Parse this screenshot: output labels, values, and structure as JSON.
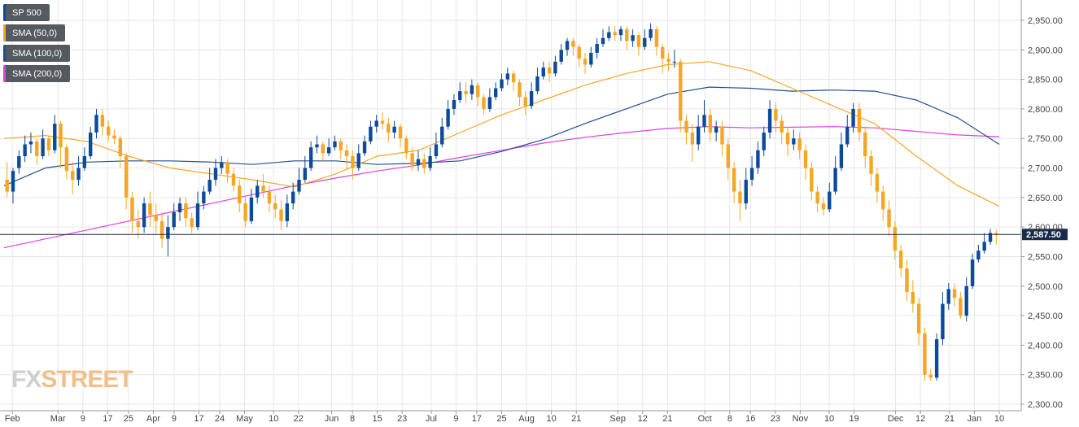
{
  "legend": [
    {
      "label": "SP 500",
      "color": "#0d4a9a"
    },
    {
      "label": "SMA (50,0)",
      "color": "#f5a623"
    },
    {
      "label": "SMA (100,0)",
      "color": "#1f4f8f"
    },
    {
      "label": "SMA (200,0)",
      "color": "#e040e0"
    }
  ],
  "watermark": {
    "part1": "FX",
    "part2": "STREET"
  },
  "colors": {
    "up": "#0d4a9a",
    "down": "#f5a623",
    "sma50": "#f5a623",
    "sma100": "#1f4f8f",
    "sma200": "#e040e0",
    "grid": "#e6e6e6",
    "price_line": "#1b2a4a"
  },
  "chart_data": {
    "type": "candlestick",
    "title": "",
    "ylim": [
      2300,
      2975
    ],
    "y_ticks": [
      2300,
      2350,
      2400,
      2450,
      2500,
      2550,
      2600,
      2650,
      2700,
      2750,
      2800,
      2850,
      2900,
      2950
    ],
    "y_tick_labels": [
      "2,300.00",
      "2,350.00",
      "2,400.00",
      "2,450.00",
      "2,500.00",
      "2,550.00",
      "2,600.00",
      "2,650.00",
      "2,700.00",
      "2,750.00",
      "2,800.00",
      "2,850.00",
      "2,900.00",
      "2,950.00"
    ],
    "x_range": [
      0,
      240
    ],
    "x_ticks": [
      {
        "label": "Feb",
        "x": 2
      },
      {
        "label": "Mar",
        "x": 13
      },
      {
        "label": "9",
        "x": 19
      },
      {
        "label": "17",
        "x": 25
      },
      {
        "label": "25",
        "x": 30
      },
      {
        "label": "Apr",
        "x": 36
      },
      {
        "label": "9",
        "x": 41
      },
      {
        "label": "17",
        "x": 47
      },
      {
        "label": "24",
        "x": 52
      },
      {
        "label": "May",
        "x": 58
      },
      {
        "label": "10",
        "x": 65
      },
      {
        "label": "22",
        "x": 71
      },
      {
        "label": "Jun",
        "x": 79
      },
      {
        "label": "8",
        "x": 84
      },
      {
        "label": "15",
        "x": 90
      },
      {
        "label": "23",
        "x": 96
      },
      {
        "label": "Jul",
        "x": 103
      },
      {
        "label": "9",
        "x": 109
      },
      {
        "label": "17",
        "x": 114
      },
      {
        "label": "25",
        "x": 120
      },
      {
        "label": "Aug",
        "x": 126
      },
      {
        "label": "10",
        "x": 132
      },
      {
        "label": "21",
        "x": 138
      },
      {
        "label": "Sep",
        "x": 148
      },
      {
        "label": "12",
        "x": 154
      },
      {
        "label": "21",
        "x": 160
      },
      {
        "label": "Oct",
        "x": 169
      },
      {
        "label": "8",
        "x": 175
      },
      {
        "label": "16",
        "x": 180
      },
      {
        "label": "23",
        "x": 186
      },
      {
        "label": "Nov",
        "x": 192
      },
      {
        "label": "10",
        "x": 199
      },
      {
        "label": "19",
        "x": 205
      },
      {
        "label": "Dec",
        "x": 215
      },
      {
        "label": "12",
        "x": 221
      },
      {
        "label": "21",
        "x": 228
      },
      {
        "label": "Jan",
        "x": 234
      },
      {
        "label": "10",
        "x": 240
      }
    ],
    "current_price": 2587.5,
    "current_price_label": "2,587.50",
    "candles": [
      [
        2680,
        2660,
        2710,
        2650
      ],
      [
        2660,
        2695,
        2700,
        2640
      ],
      [
        2700,
        2720,
        2730,
        2690
      ],
      [
        2720,
        2740,
        2755,
        2710
      ],
      [
        2740,
        2745,
        2760,
        2725
      ],
      [
        2745,
        2720,
        2750,
        2705
      ],
      [
        2720,
        2750,
        2765,
        2715
      ],
      [
        2750,
        2730,
        2755,
        2720
      ],
      [
        2730,
        2775,
        2790,
        2725
      ],
      [
        2775,
        2735,
        2780,
        2700
      ],
      [
        2735,
        2695,
        2740,
        2680
      ],
      [
        2695,
        2680,
        2710,
        2655
      ],
      [
        2680,
        2700,
        2720,
        2670
      ],
      [
        2700,
        2720,
        2735,
        2695
      ],
      [
        2720,
        2760,
        2770,
        2715
      ],
      [
        2760,
        2790,
        2800,
        2750
      ],
      [
        2790,
        2770,
        2800,
        2755
      ],
      [
        2770,
        2755,
        2780,
        2745
      ],
      [
        2755,
        2750,
        2765,
        2740
      ],
      [
        2750,
        2720,
        2755,
        2700
      ],
      [
        2720,
        2650,
        2725,
        2630
      ],
      [
        2650,
        2610,
        2660,
        2590
      ],
      [
        2610,
        2600,
        2630,
        2580
      ],
      [
        2600,
        2640,
        2650,
        2590
      ],
      [
        2640,
        2620,
        2660,
        2600
      ],
      [
        2620,
        2610,
        2640,
        2590
      ],
      [
        2610,
        2580,
        2625,
        2565
      ],
      [
        2580,
        2600,
        2620,
        2550
      ],
      [
        2600,
        2625,
        2640,
        2595
      ],
      [
        2625,
        2640,
        2650,
        2610
      ],
      [
        2640,
        2615,
        2650,
        2600
      ],
      [
        2615,
        2600,
        2625,
        2590
      ],
      [
        2600,
        2640,
        2660,
        2595
      ],
      [
        2640,
        2660,
        2670,
        2630
      ],
      [
        2660,
        2680,
        2700,
        2655
      ],
      [
        2680,
        2700,
        2715,
        2670
      ],
      [
        2700,
        2710,
        2720,
        2690
      ],
      [
        2710,
        2690,
        2715,
        2675
      ],
      [
        2690,
        2670,
        2700,
        2660
      ],
      [
        2670,
        2640,
        2680,
        2625
      ],
      [
        2640,
        2610,
        2650,
        2600
      ],
      [
        2610,
        2650,
        2665,
        2605
      ],
      [
        2650,
        2670,
        2680,
        2640
      ],
      [
        2670,
        2660,
        2690,
        2650
      ],
      [
        2660,
        2640,
        2670,
        2625
      ],
      [
        2640,
        2630,
        2655,
        2615
      ],
      [
        2630,
        2610,
        2645,
        2595
      ],
      [
        2610,
        2640,
        2655,
        2600
      ],
      [
        2640,
        2660,
        2675,
        2630
      ],
      [
        2660,
        2680,
        2700,
        2655
      ],
      [
        2680,
        2700,
        2720,
        2675
      ],
      [
        2700,
        2735,
        2745,
        2695
      ],
      [
        2735,
        2740,
        2755,
        2725
      ],
      [
        2740,
        2725,
        2745,
        2710
      ],
      [
        2725,
        2735,
        2750,
        2720
      ],
      [
        2735,
        2745,
        2755,
        2730
      ],
      [
        2745,
        2730,
        2750,
        2715
      ],
      [
        2730,
        2720,
        2740,
        2700
      ],
      [
        2720,
        2700,
        2730,
        2680
      ],
      [
        2700,
        2725,
        2740,
        2695
      ],
      [
        2725,
        2745,
        2755,
        2720
      ],
      [
        2745,
        2770,
        2780,
        2740
      ],
      [
        2770,
        2780,
        2790,
        2760
      ],
      [
        2780,
        2775,
        2795,
        2765
      ],
      [
        2775,
        2760,
        2785,
        2745
      ],
      [
        2760,
        2770,
        2780,
        2750
      ],
      [
        2770,
        2750,
        2775,
        2735
      ],
      [
        2750,
        2725,
        2755,
        2715
      ],
      [
        2725,
        2705,
        2735,
        2695
      ],
      [
        2705,
        2715,
        2730,
        2695
      ],
      [
        2715,
        2700,
        2725,
        2690
      ],
      [
        2700,
        2720,
        2735,
        2695
      ],
      [
        2720,
        2740,
        2760,
        2715
      ],
      [
        2740,
        2770,
        2785,
        2735
      ],
      [
        2770,
        2800,
        2815,
        2765
      ],
      [
        2800,
        2815,
        2825,
        2790
      ],
      [
        2815,
        2830,
        2845,
        2810
      ],
      [
        2830,
        2825,
        2845,
        2810
      ],
      [
        2825,
        2840,
        2850,
        2815
      ],
      [
        2840,
        2820,
        2845,
        2805
      ],
      [
        2820,
        2800,
        2825,
        2790
      ],
      [
        2800,
        2820,
        2835,
        2795
      ],
      [
        2820,
        2835,
        2845,
        2815
      ],
      [
        2835,
        2850,
        2860,
        2830
      ],
      [
        2850,
        2860,
        2870,
        2840
      ],
      [
        2860,
        2845,
        2865,
        2830
      ],
      [
        2845,
        2820,
        2850,
        2805
      ],
      [
        2820,
        2805,
        2830,
        2790
      ],
      [
        2805,
        2830,
        2845,
        2800
      ],
      [
        2830,
        2855,
        2870,
        2825
      ],
      [
        2855,
        2870,
        2880,
        2850
      ],
      [
        2870,
        2860,
        2880,
        2845
      ],
      [
        2860,
        2880,
        2890,
        2855
      ],
      [
        2880,
        2900,
        2910,
        2875
      ],
      [
        2900,
        2915,
        2920,
        2890
      ],
      [
        2915,
        2905,
        2920,
        2890
      ],
      [
        2905,
        2885,
        2910,
        2870
      ],
      [
        2885,
        2875,
        2895,
        2860
      ],
      [
        2875,
        2895,
        2905,
        2870
      ],
      [
        2895,
        2910,
        2920,
        2885
      ],
      [
        2910,
        2920,
        2935,
        2905
      ],
      [
        2920,
        2930,
        2940,
        2915
      ],
      [
        2930,
        2925,
        2940,
        2915
      ],
      [
        2925,
        2935,
        2940,
        2915
      ],
      [
        2935,
        2915,
        2940,
        2900
      ],
      [
        2915,
        2925,
        2935,
        2905
      ],
      [
        2925,
        2905,
        2930,
        2890
      ],
      [
        2905,
        2920,
        2935,
        2900
      ],
      [
        2920,
        2935,
        2945,
        2915
      ],
      [
        2935,
        2905,
        2940,
        2890
      ],
      [
        2905,
        2885,
        2910,
        2860
      ],
      [
        2885,
        2880,
        2895,
        2865
      ],
      [
        2880,
        2880,
        2900,
        2870
      ],
      [
        2880,
        2780,
        2885,
        2760
      ],
      [
        2780,
        2760,
        2790,
        2740
      ],
      [
        2760,
        2740,
        2775,
        2710
      ],
      [
        2740,
        2770,
        2790,
        2730
      ],
      [
        2770,
        2790,
        2815,
        2760
      ],
      [
        2790,
        2760,
        2800,
        2745
      ],
      [
        2760,
        2770,
        2780,
        2745
      ],
      [
        2770,
        2740,
        2780,
        2720
      ],
      [
        2740,
        2700,
        2750,
        2680
      ],
      [
        2700,
        2660,
        2710,
        2640
      ],
      [
        2660,
        2640,
        2680,
        2610
      ],
      [
        2640,
        2680,
        2700,
        2630
      ],
      [
        2680,
        2700,
        2720,
        2670
      ],
      [
        2700,
        2730,
        2745,
        2690
      ],
      [
        2730,
        2760,
        2770,
        2720
      ],
      [
        2760,
        2800,
        2815,
        2750
      ],
      [
        2800,
        2780,
        2810,
        2760
      ],
      [
        2780,
        2760,
        2790,
        2740
      ],
      [
        2760,
        2740,
        2770,
        2720
      ],
      [
        2740,
        2750,
        2765,
        2730
      ],
      [
        2750,
        2730,
        2760,
        2715
      ],
      [
        2730,
        2700,
        2740,
        2680
      ],
      [
        2700,
        2660,
        2710,
        2645
      ],
      [
        2660,
        2640,
        2670,
        2625
      ],
      [
        2640,
        2630,
        2650,
        2620
      ],
      [
        2630,
        2660,
        2675,
        2625
      ],
      [
        2660,
        2700,
        2720,
        2655
      ],
      [
        2700,
        2740,
        2760,
        2695
      ],
      [
        2740,
        2770,
        2790,
        2735
      ],
      [
        2770,
        2800,
        2810,
        2760
      ],
      [
        2800,
        2760,
        2810,
        2745
      ],
      [
        2760,
        2720,
        2770,
        2700
      ],
      [
        2720,
        2690,
        2730,
        2670
      ],
      [
        2690,
        2660,
        2700,
        2640
      ],
      [
        2660,
        2630,
        2670,
        2610
      ],
      [
        2630,
        2600,
        2645,
        2585
      ],
      [
        2600,
        2560,
        2610,
        2545
      ],
      [
        2560,
        2530,
        2570,
        2515
      ],
      [
        2530,
        2490,
        2545,
        2475
      ],
      [
        2490,
        2470,
        2510,
        2455
      ],
      [
        2470,
        2420,
        2480,
        2400
      ],
      [
        2420,
        2350,
        2430,
        2340
      ],
      [
        2350,
        2345,
        2360,
        2340
      ],
      [
        2345,
        2410,
        2420,
        2340
      ],
      [
        2410,
        2470,
        2490,
        2400
      ],
      [
        2470,
        2495,
        2505,
        2460
      ],
      [
        2495,
        2480,
        2505,
        2465
      ],
      [
        2480,
        2450,
        2490,
        2445
      ],
      [
        2450,
        2500,
        2515,
        2440
      ],
      [
        2500,
        2545,
        2555,
        2495
      ],
      [
        2545,
        2560,
        2570,
        2540
      ],
      [
        2560,
        2575,
        2590,
        2555
      ],
      [
        2575,
        2590,
        2597,
        2570
      ],
      [
        2590,
        2587.5,
        2595,
        2570
      ]
    ],
    "sma50": [
      [
        0,
        2750
      ],
      [
        10,
        2755
      ],
      [
        20,
        2745
      ],
      [
        30,
        2720
      ],
      [
        40,
        2700
      ],
      [
        50,
        2690
      ],
      [
        60,
        2680
      ],
      [
        70,
        2668
      ],
      [
        80,
        2690
      ],
      [
        90,
        2720
      ],
      [
        100,
        2730
      ],
      [
        110,
        2760
      ],
      [
        120,
        2790
      ],
      [
        130,
        2815
      ],
      [
        140,
        2840
      ],
      [
        150,
        2860
      ],
      [
        160,
        2875
      ],
      [
        170,
        2880
      ],
      [
        180,
        2865
      ],
      [
        190,
        2835
      ],
      [
        200,
        2805
      ],
      [
        210,
        2775
      ],
      [
        220,
        2720
      ],
      [
        230,
        2670
      ],
      [
        240,
        2635
      ]
    ],
    "sma100": [
      [
        0,
        2670
      ],
      [
        10,
        2700
      ],
      [
        20,
        2710
      ],
      [
        30,
        2712
      ],
      [
        40,
        2712
      ],
      [
        50,
        2710
      ],
      [
        60,
        2706
      ],
      [
        70,
        2712
      ],
      [
        80,
        2712
      ],
      [
        90,
        2706
      ],
      [
        100,
        2708
      ],
      [
        110,
        2712
      ],
      [
        120,
        2728
      ],
      [
        130,
        2748
      ],
      [
        140,
        2775
      ],
      [
        150,
        2800
      ],
      [
        160,
        2825
      ],
      [
        170,
        2837
      ],
      [
        180,
        2835
      ],
      [
        190,
        2830
      ],
      [
        200,
        2832
      ],
      [
        210,
        2830
      ],
      [
        220,
        2815
      ],
      [
        230,
        2785
      ],
      [
        240,
        2740
      ]
    ],
    "sma200": [
      [
        0,
        2565
      ],
      [
        10,
        2580
      ],
      [
        20,
        2595
      ],
      [
        30,
        2610
      ],
      [
        40,
        2625
      ],
      [
        50,
        2640
      ],
      [
        60,
        2655
      ],
      [
        70,
        2670
      ],
      [
        80,
        2683
      ],
      [
        90,
        2695
      ],
      [
        100,
        2705
      ],
      [
        110,
        2718
      ],
      [
        120,
        2730
      ],
      [
        130,
        2742
      ],
      [
        140,
        2752
      ],
      [
        150,
        2760
      ],
      [
        160,
        2767
      ],
      [
        170,
        2770
      ],
      [
        180,
        2768
      ],
      [
        190,
        2769
      ],
      [
        200,
        2770
      ],
      [
        210,
        2768
      ],
      [
        220,
        2762
      ],
      [
        230,
        2756
      ],
      [
        240,
        2753
      ]
    ]
  }
}
